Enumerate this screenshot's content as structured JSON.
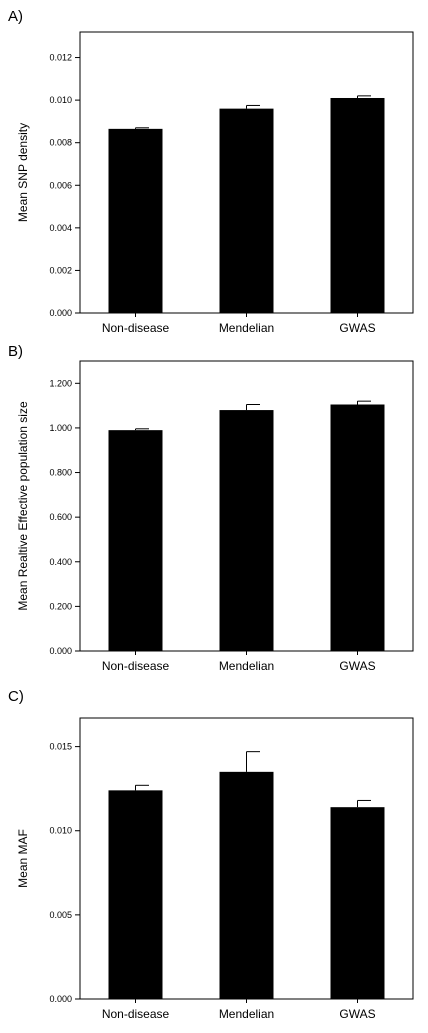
{
  "chart_data": [
    {
      "type": "bar",
      "panel_label": "A)",
      "ylabel": "Mean SNP density",
      "categories": [
        "Non-disease",
        "Mendelian",
        "GWAS"
      ],
      "values": [
        0.00865,
        0.0096,
        0.0101
      ],
      "errors": [
        5e-05,
        0.00015,
        0.0001
      ],
      "ylim": [
        0,
        0.0132
      ],
      "yticks": [
        0,
        0.002,
        0.004,
        0.006,
        0.008,
        0.01,
        0.012
      ],
      "ytick_labels": [
        "0.000",
        "0.002",
        "0.004",
        "0.006",
        "0.008",
        "0.010",
        "0.012"
      ],
      "bar_color": "#000000"
    },
    {
      "type": "bar",
      "panel_label": "B)",
      "ylabel": "Mean Realtive Effective population size",
      "categories": [
        "Non-disease",
        "Mendelian",
        "GWAS"
      ],
      "values": [
        0.99,
        1.08,
        1.105
      ],
      "errors": [
        0.006,
        0.025,
        0.015
      ],
      "ylim": [
        0,
        1.3
      ],
      "yticks": [
        0,
        0.2,
        0.4,
        0.6,
        0.8,
        1.0,
        1.2
      ],
      "ytick_labels": [
        "0.000",
        "0.200",
        "0.400",
        "0.600",
        "0.800",
        "1.000",
        "1.200"
      ],
      "bar_color": "#000000"
    },
    {
      "type": "bar",
      "panel_label": "C)",
      "ylabel": "Mean MAF",
      "categories": [
        "Non-disease",
        "Mendelian",
        "GWAS"
      ],
      "values": [
        0.0124,
        0.0135,
        0.0114
      ],
      "errors": [
        0.0003,
        0.0012,
        0.0004
      ],
      "ylim": [
        0,
        0.0167
      ],
      "yticks": [
        0,
        0.005,
        0.01,
        0.015
      ],
      "ytick_labels": [
        "0.000",
        "0.005",
        "0.010",
        "0.015"
      ],
      "bar_color": "#000000"
    }
  ]
}
